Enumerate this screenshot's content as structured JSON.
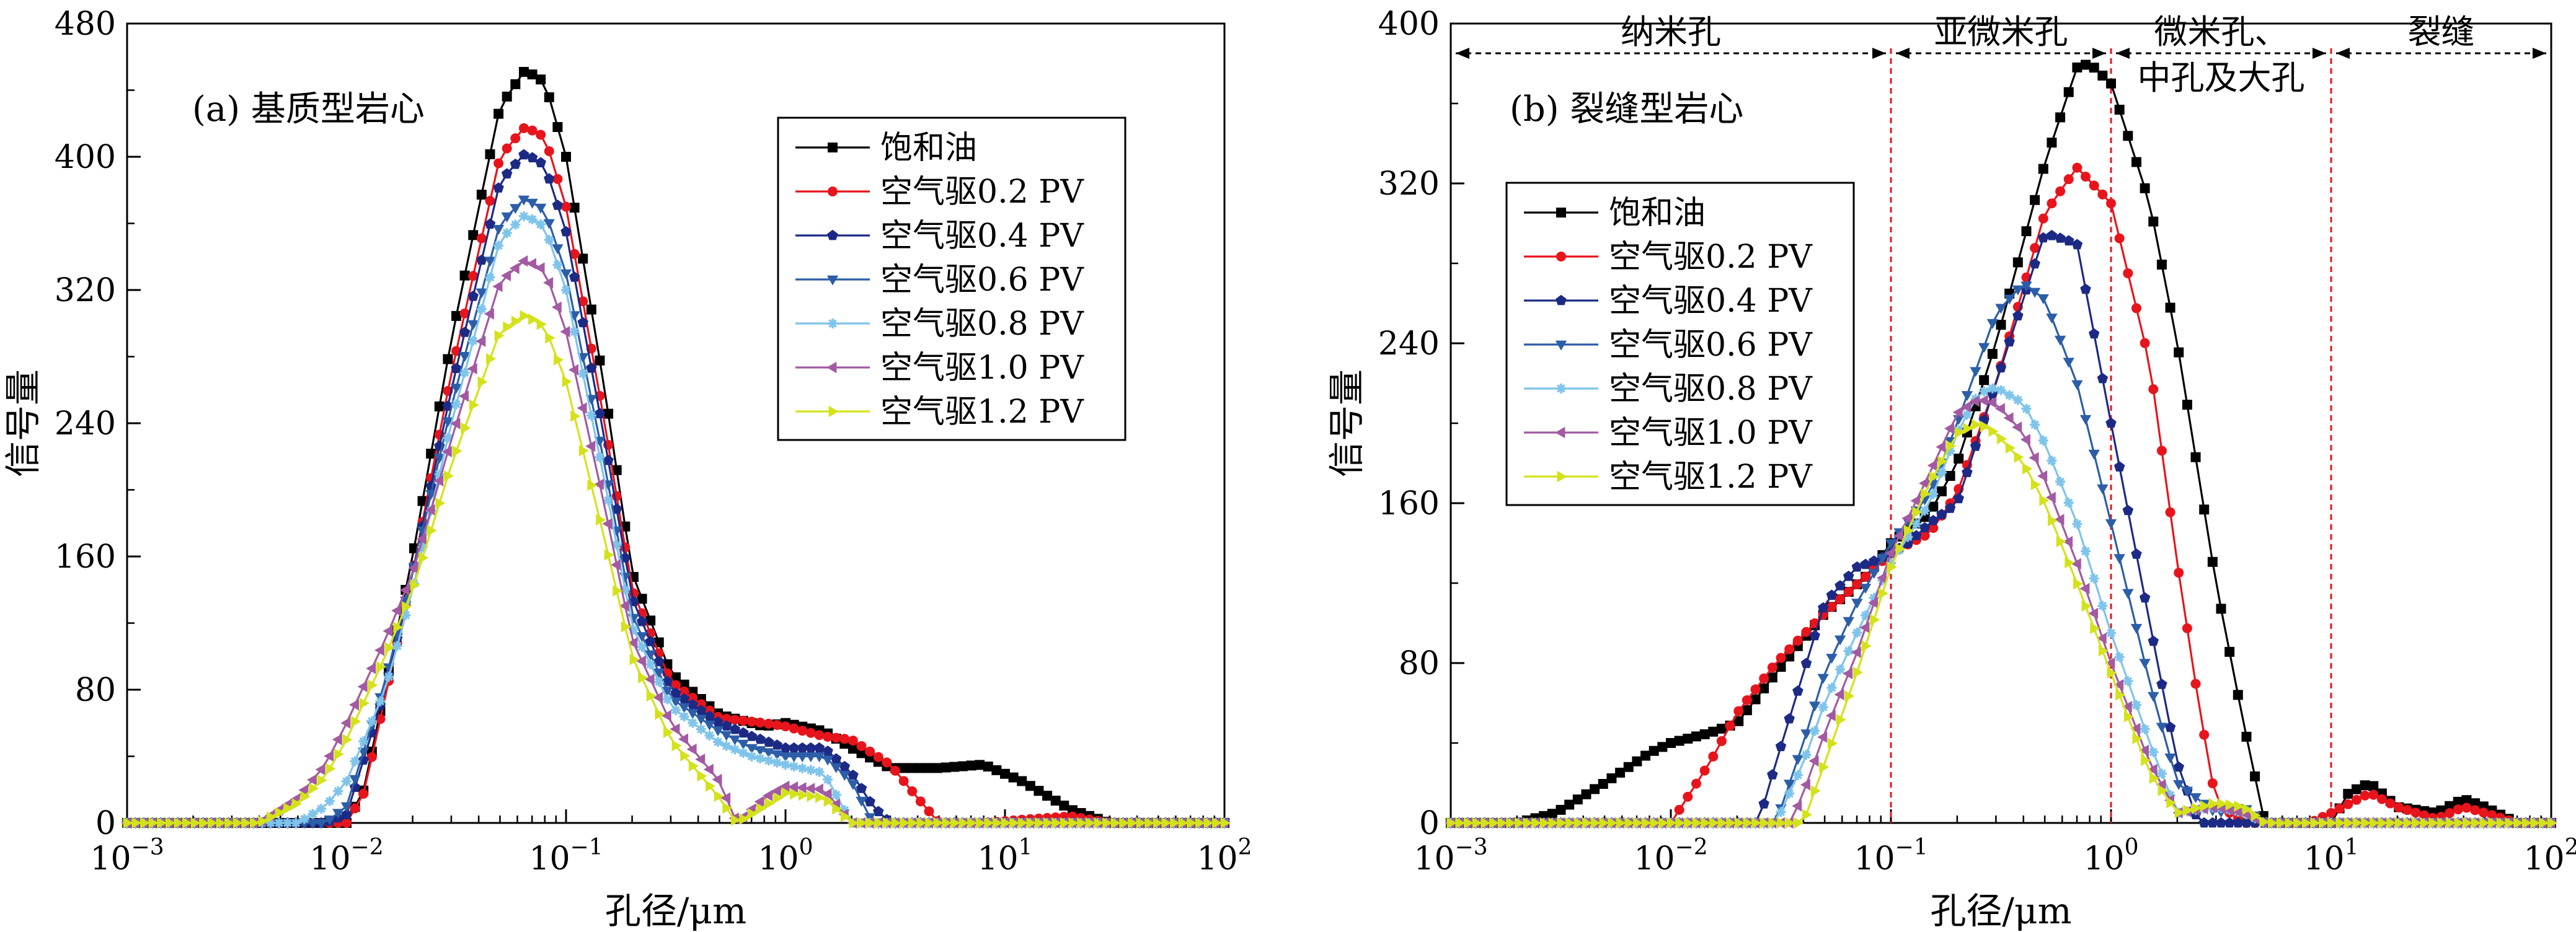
{
  "chart_data": [
    {
      "type": "line",
      "title": "(a) 基质型岩心",
      "xlabel": "孔径/μm",
      "ylabel": "信号量",
      "x_scale": "log",
      "xlim": [
        0.001,
        100
      ],
      "ylim": [
        0,
        480
      ],
      "x_ticks": [
        0.001,
        0.01,
        0.1,
        1,
        10,
        100
      ],
      "x_tick_labels": [
        {
          "base": "10",
          "exp": "−3"
        },
        {
          "base": "10",
          "exp": "−2"
        },
        {
          "base": "10",
          "exp": "−1"
        },
        {
          "base": "10",
          "exp": "0"
        },
        {
          "base": "10",
          "exp": "1"
        },
        {
          "base": "10",
          "exp": "2"
        }
      ],
      "y_ticks": [
        "0",
        "80",
        "160",
        "240",
        "320",
        "400",
        "480"
      ],
      "legend_position": "right",
      "series": [
        {
          "name": "饱和油",
          "color": "#000000",
          "marker": "square",
          "x": [
            0.001,
            0.01,
            0.012,
            0.02,
            0.03,
            0.05,
            0.065,
            0.08,
            0.1,
            0.15,
            0.2,
            0.3,
            0.5,
            0.8,
            1.0,
            1.5,
            2.0,
            3.0,
            5.0,
            8.0,
            12.0,
            20.0,
            30.0,
            100
          ],
          "y": [
            0,
            0,
            20,
            160,
            290,
            430,
            452,
            445,
            400,
            260,
            150,
            90,
            65,
            58,
            60,
            55,
            45,
            33,
            33,
            35,
            25,
            8,
            0,
            0
          ]
        },
        {
          "name": "空气驱0.2 PV",
          "color": "#e8141c",
          "marker": "circle",
          "x": [
            0.001,
            0.01,
            0.012,
            0.02,
            0.03,
            0.05,
            0.065,
            0.08,
            0.1,
            0.15,
            0.2,
            0.3,
            0.5,
            0.8,
            1.0,
            1.5,
            2.0,
            3.0,
            4.0,
            5.0,
            8.0,
            12.0,
            20.0,
            30.0,
            100
          ],
          "y": [
            0,
            0,
            18,
            150,
            270,
            400,
            418,
            412,
            370,
            240,
            140,
            85,
            63,
            60,
            58,
            52,
            50,
            35,
            15,
            0,
            0,
            2,
            4,
            0,
            0
          ]
        },
        {
          "name": "空气驱0.4 PV",
          "color": "#1c2a85",
          "marker": "pentagon",
          "x": [
            0.001,
            0.008,
            0.01,
            0.015,
            0.02,
            0.03,
            0.05,
            0.065,
            0.08,
            0.1,
            0.15,
            0.2,
            0.3,
            0.5,
            0.7,
            1.0,
            1.5,
            2.0,
            2.5,
            3.0,
            100
          ],
          "y": [
            0,
            0,
            5,
            80,
            150,
            260,
            385,
            402,
            395,
            355,
            230,
            135,
            80,
            60,
            52,
            45,
            45,
            30,
            10,
            0,
            0
          ]
        },
        {
          "name": "空气驱0.6 PV",
          "color": "#2c5ea8",
          "marker": "triangle-down",
          "x": [
            0.001,
            0.008,
            0.01,
            0.015,
            0.02,
            0.03,
            0.05,
            0.065,
            0.08,
            0.1,
            0.15,
            0.2,
            0.3,
            0.5,
            0.7,
            1.0,
            1.5,
            2.0,
            2.5,
            100
          ],
          "y": [
            0,
            0,
            10,
            85,
            150,
            250,
            360,
            375,
            368,
            330,
            215,
            125,
            75,
            55,
            45,
            40,
            40,
            25,
            0,
            0
          ]
        },
        {
          "name": "空气驱0.8 PV",
          "color": "#7fc4ea",
          "marker": "asterisk",
          "x": [
            0.001,
            0.006,
            0.008,
            0.01,
            0.015,
            0.02,
            0.03,
            0.05,
            0.065,
            0.08,
            0.1,
            0.15,
            0.2,
            0.3,
            0.5,
            0.7,
            1.0,
            1.5,
            2.0,
            100
          ],
          "y": [
            0,
            0,
            10,
            25,
            80,
            140,
            240,
            350,
            365,
            358,
            320,
            205,
            118,
            70,
            48,
            40,
            35,
            30,
            0,
            0
          ]
        },
        {
          "name": "空气驱1.0 PV",
          "color": "#a35aa2",
          "marker": "triangle-left",
          "x": [
            0.001,
            0.004,
            0.006,
            0.008,
            0.01,
            0.015,
            0.02,
            0.03,
            0.05,
            0.065,
            0.08,
            0.1,
            0.15,
            0.2,
            0.3,
            0.5,
            0.6,
            0.8,
            1.0,
            1.5,
            2.0,
            100
          ],
          "y": [
            0,
            0,
            15,
            35,
            60,
            110,
            150,
            230,
            325,
            338,
            332,
            295,
            190,
            110,
            60,
            25,
            0,
            15,
            22,
            20,
            0,
            0
          ]
        },
        {
          "name": "空气驱1.2 PV",
          "color": "#d4e21a",
          "marker": "triangle-right",
          "x": [
            0.001,
            0.004,
            0.006,
            0.008,
            0.01,
            0.015,
            0.02,
            0.03,
            0.05,
            0.065,
            0.08,
            0.1,
            0.15,
            0.2,
            0.3,
            0.5,
            0.6,
            0.8,
            1.0,
            1.5,
            2.0,
            100
          ],
          "y": [
            0,
            0,
            12,
            28,
            50,
            100,
            140,
            215,
            295,
            305,
            298,
            265,
            170,
            100,
            50,
            15,
            0,
            10,
            18,
            15,
            0,
            0
          ]
        }
      ]
    },
    {
      "type": "line",
      "title": "(b) 裂缝型岩心",
      "xlabel": "孔径/μm",
      "ylabel": "信号量",
      "x_scale": "log",
      "xlim": [
        0.001,
        100
      ],
      "ylim": [
        0,
        400
      ],
      "x_ticks": [
        0.001,
        0.01,
        0.1,
        1,
        10,
        100
      ],
      "x_tick_labels": [
        {
          "base": "10",
          "exp": "−3"
        },
        {
          "base": "10",
          "exp": "−2"
        },
        {
          "base": "10",
          "exp": "−1"
        },
        {
          "base": "10",
          "exp": "0"
        },
        {
          "base": "10",
          "exp": "1"
        },
        {
          "base": "10",
          "exp": "2"
        }
      ],
      "y_ticks": [
        "0",
        "80",
        "160",
        "240",
        "320",
        "400"
      ],
      "legend_position": "top-left",
      "regions": [
        {
          "label": "纳米孔",
          "from": 0.001,
          "to": 0.1
        },
        {
          "label": "亚微米孔",
          "from": 0.1,
          "to": 1
        },
        {
          "label": "微米孔、",
          "label2": "中孔及大孔",
          "from": 1,
          "to": 10
        },
        {
          "label": "裂缝",
          "from": 10,
          "to": 100
        }
      ],
      "boundaries": [
        0.1,
        1,
        10
      ],
      "series": [
        {
          "name": "饱和油",
          "color": "#000000",
          "marker": "square",
          "x": [
            0.001,
            0.002,
            0.003,
            0.005,
            0.008,
            0.01,
            0.015,
            0.02,
            0.03,
            0.05,
            0.08,
            0.1,
            0.15,
            0.2,
            0.3,
            0.5,
            0.7,
            0.8,
            1.0,
            1.5,
            2.0,
            3.0,
            4.0,
            5.0,
            6.0,
            8.0,
            10.0,
            12.0,
            15.0,
            20.0,
            30.0,
            40.0,
            50.0,
            70.0,
            100
          ],
          "y": [
            0,
            0,
            5,
            20,
            35,
            40,
            45,
            50,
            75,
            105,
            125,
            140,
            155,
            180,
            240,
            330,
            378,
            380,
            370,
            310,
            240,
            120,
            50,
            0,
            0,
            0,
            0,
            15,
            20,
            8,
            5,
            12,
            8,
            0,
            0
          ]
        },
        {
          "name": "空气驱0.2 PV",
          "color": "#e8141c",
          "marker": "circle",
          "x": [
            0.001,
            0.01,
            0.015,
            0.02,
            0.03,
            0.05,
            0.08,
            0.1,
            0.15,
            0.2,
            0.3,
            0.5,
            0.7,
            1.0,
            1.5,
            2.0,
            2.5,
            3.0,
            4.0,
            5.0,
            8.0,
            10.0,
            15.0,
            20.0,
            30.0,
            40.0,
            50.0,
            70.0,
            100
          ],
          "y": [
            0,
            0,
            30,
            55,
            80,
            105,
            125,
            135,
            145,
            165,
            220,
            305,
            328,
            310,
            230,
            130,
            60,
            10,
            0,
            0,
            0,
            5,
            15,
            8,
            2,
            8,
            5,
            0,
            0
          ]
        },
        {
          "name": "空气驱0.4 PV",
          "color": "#1c2a85",
          "marker": "pentagon",
          "x": [
            0.001,
            0.025,
            0.03,
            0.04,
            0.05,
            0.07,
            0.08,
            0.1,
            0.12,
            0.15,
            0.2,
            0.3,
            0.5,
            0.7,
            1.0,
            1.5,
            2.0,
            2.5,
            100
          ],
          "y": [
            0,
            0,
            30,
            75,
            110,
            128,
            130,
            135,
            140,
            150,
            160,
            220,
            295,
            290,
            200,
            100,
            30,
            0,
            0
          ]
        },
        {
          "name": "空气驱0.6 PV",
          "color": "#2c5ea8",
          "marker": "triangle-down",
          "x": [
            0.001,
            0.03,
            0.04,
            0.05,
            0.07,
            0.1,
            0.15,
            0.2,
            0.3,
            0.4,
            0.5,
            0.7,
            1.0,
            1.5,
            2.0,
            3.0,
            4.0,
            5.0,
            100
          ],
          "y": [
            0,
            0,
            40,
            75,
            110,
            140,
            165,
            200,
            255,
            270,
            262,
            220,
            150,
            70,
            20,
            5,
            8,
            0,
            0
          ]
        },
        {
          "name": "空气驱0.8 PV",
          "color": "#7fc4ea",
          "marker": "asterisk",
          "x": [
            0.001,
            0.03,
            0.04,
            0.05,
            0.07,
            0.1,
            0.15,
            0.2,
            0.25,
            0.3,
            0.4,
            0.5,
            0.7,
            1.0,
            1.5,
            2.0,
            3.0,
            4.0,
            5.0,
            100
          ],
          "y": [
            0,
            0,
            30,
            60,
            95,
            130,
            160,
            195,
            215,
            218,
            210,
            190,
            150,
            95,
            40,
            5,
            8,
            5,
            0,
            0
          ]
        },
        {
          "name": "空气驱1.0 PV",
          "color": "#a35aa2",
          "marker": "triangle-left",
          "x": [
            0.001,
            0.035,
            0.04,
            0.05,
            0.07,
            0.1,
            0.15,
            0.2,
            0.25,
            0.3,
            0.4,
            0.5,
            0.7,
            1.0,
            1.5,
            2.0,
            3.0,
            4.0,
            5.0,
            100
          ],
          "y": [
            0,
            0,
            15,
            45,
            85,
            135,
            175,
            205,
            212,
            210,
            195,
            172,
            130,
            80,
            30,
            5,
            8,
            5,
            0,
            0
          ]
        },
        {
          "name": "空气驱1.2 PV",
          "color": "#d4e21a",
          "marker": "triangle-right",
          "x": [
            0.001,
            0.04,
            0.05,
            0.07,
            0.1,
            0.15,
            0.2,
            0.25,
            0.3,
            0.4,
            0.5,
            0.7,
            1.0,
            1.5,
            2.0,
            3.0,
            4.0,
            5.0,
            100
          ],
          "y": [
            0,
            0,
            30,
            75,
            128,
            170,
            195,
            200,
            195,
            180,
            160,
            120,
            75,
            25,
            5,
            10,
            8,
            0,
            0
          ]
        }
      ]
    }
  ]
}
